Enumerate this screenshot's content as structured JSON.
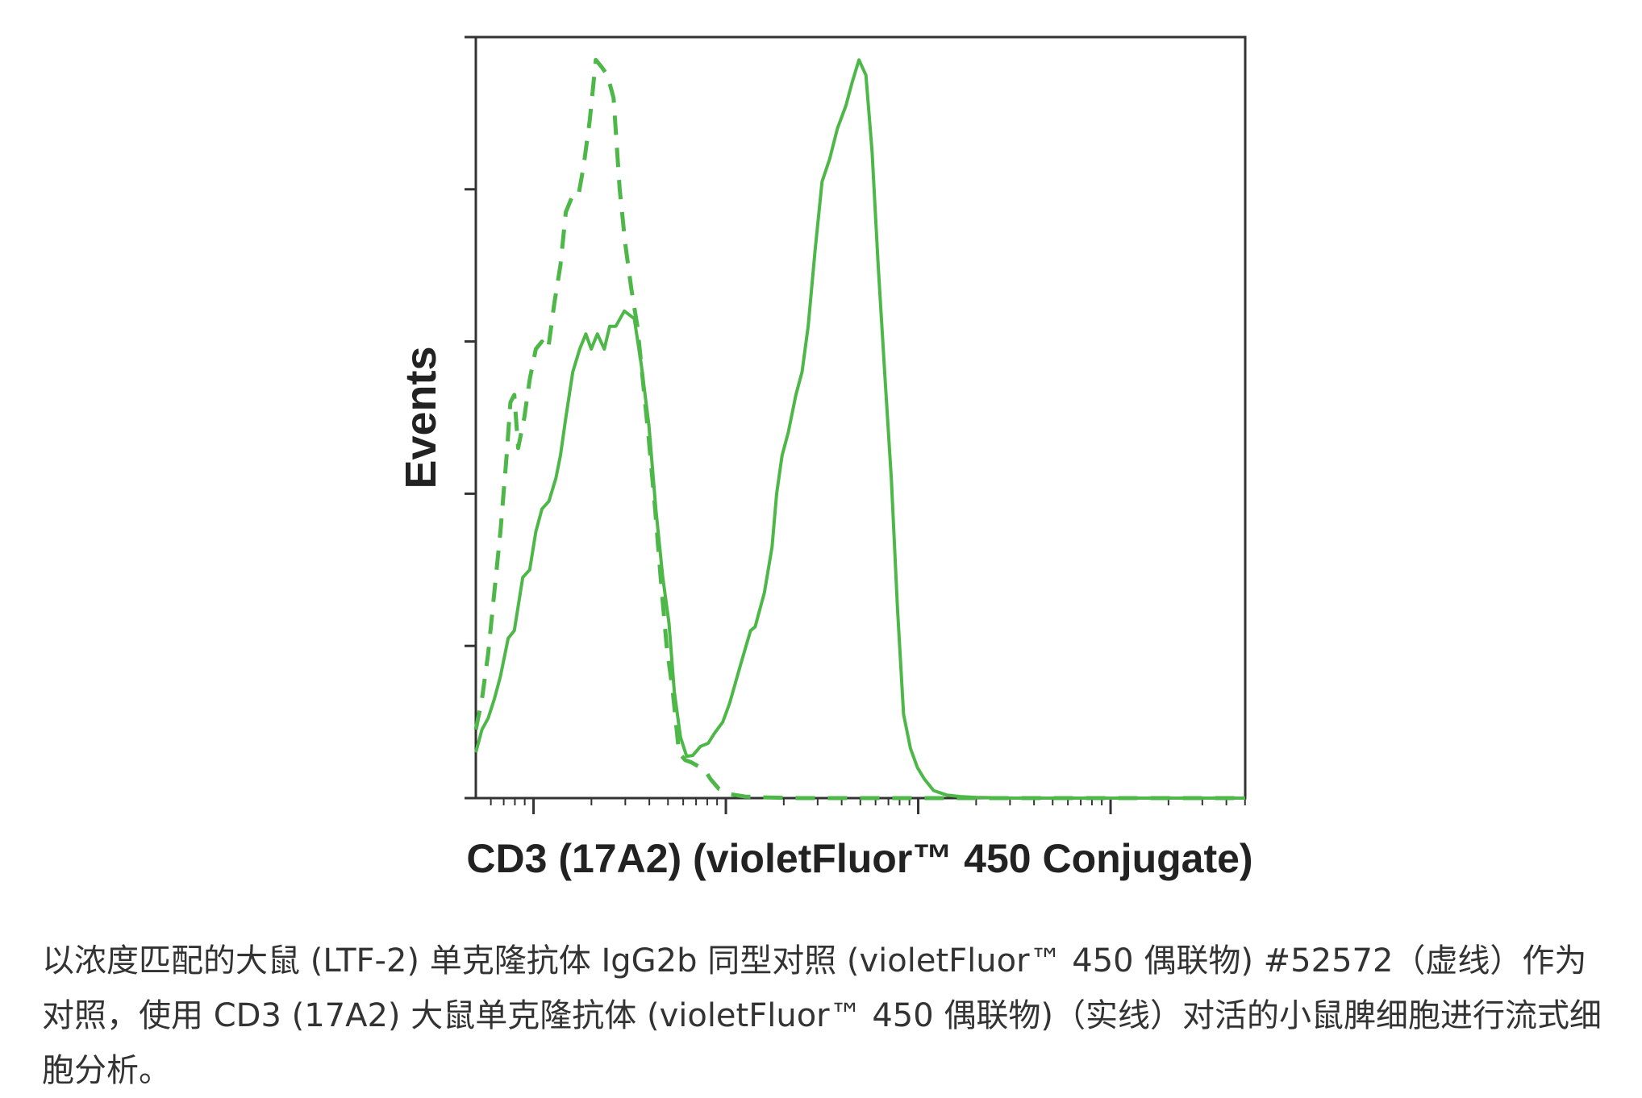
{
  "colors": {
    "series": "#4db848",
    "axis": "#333333",
    "text": "#222222"
  },
  "chart_data": {
    "type": "line",
    "title": "",
    "xlabel": "CD3 (17A2) (violetFluor™ 450 Conjugate)",
    "ylabel": "Events",
    "xlim": [
      0,
      100
    ],
    "ylim": [
      0,
      100
    ],
    "x_major_ticks": [
      7.5,
      32.5,
      57.5,
      82.5
    ],
    "y_ticks": [
      0,
      20,
      40,
      60,
      80,
      100
    ],
    "grid": false,
    "legend": "none",
    "series": [
      {
        "style": "dashed",
        "x": [
          0,
          0.8,
          1.6,
          2.4,
          3.2,
          4.0,
          4.5,
          5.0,
          5.5,
          6.3,
          7.0,
          7.8,
          8.6,
          9.4,
          10.2,
          11.0,
          11.7,
          12.5,
          13.3,
          14.0,
          14.8,
          15.6,
          16.4,
          17.1,
          17.9,
          18.7,
          19.4,
          20.2,
          21.0,
          21.7,
          22.5,
          23.3,
          24.1,
          24.8,
          25.6,
          26.4,
          27.2,
          28.0,
          28.9,
          29.7,
          30.5,
          31.6,
          33.2,
          35.0,
          37.5,
          42.0,
          50.0,
          60.0,
          75.0,
          100.0
        ],
        "values": [
          9,
          13,
          19,
          27,
          35,
          45,
          52,
          53,
          46,
          50,
          55,
          59,
          60,
          59,
          65,
          70,
          77,
          79,
          79,
          83,
          89,
          97,
          96,
          95,
          92,
          80,
          73,
          67,
          62,
          55,
          47,
          38,
          28,
          20,
          14,
          6,
          5,
          4.7,
          4.2,
          3.8,
          2.5,
          1.2,
          0.5,
          0.2,
          0.1,
          0,
          0,
          0,
          0,
          0
        ]
      },
      {
        "style": "solid",
        "x": [
          0,
          0.8,
          1.6,
          2.4,
          3.2,
          4.2,
          5.0,
          6.1,
          7.0,
          7.8,
          8.6,
          9.5,
          10.4,
          11.0,
          11.7,
          12.6,
          13.5,
          14.3,
          15.0,
          15.8,
          16.7,
          17.4,
          18.2,
          19.3,
          20.6,
          21.5,
          22.5,
          23.4,
          24.3,
          25.1,
          25.8,
          26.6,
          27.4,
          28.2,
          29.2,
          30.2,
          31.0,
          32.1,
          33.0,
          34.4,
          35.7,
          36.3,
          37.5,
          38.5,
          39.1,
          39.8,
          40.6,
          41.6,
          42.4,
          43.2,
          44.1,
          45.0,
          46.0,
          47.0,
          48.1,
          48.9,
          49.8,
          50.7,
          51.5,
          52.3,
          53.2,
          54.0,
          54.8,
          55.6,
          56.5,
          57.4,
          58.3,
          59.5,
          61.2,
          63.0,
          65.0,
          70.0,
          80.0,
          90.0,
          100.0
        ],
        "values": [
          6,
          9,
          10.5,
          13,
          16,
          21,
          22,
          29,
          30,
          35,
          38,
          39,
          42,
          45,
          50,
          56,
          59,
          61,
          59,
          61,
          59,
          62,
          62,
          64,
          63,
          57,
          49,
          38,
          29,
          23,
          14,
          8,
          5.5,
          5.6,
          6.8,
          7.2,
          8.5,
          10,
          12.5,
          17.5,
          22,
          22.5,
          27,
          33,
          40,
          45,
          48,
          53,
          56,
          62,
          72,
          81,
          84,
          88,
          91,
          94,
          97,
          95,
          85,
          70,
          55,
          42,
          25,
          11,
          6.5,
          4,
          2.5,
          1,
          0.4,
          0.2,
          0.1,
          0,
          0,
          0,
          0
        ]
      }
    ]
  },
  "caption": "以浓度匹配的大鼠 (LTF-2) 单克隆抗体 IgG2b 同型对照 (violetFluor™ 450 偶联物) #52572（虚线）作为对照，使用 CD3 (17A2) 大鼠单克隆抗体 (violetFluor™ 450 偶联物)（实线）对活的小鼠脾细胞进行流式细胞分析。"
}
